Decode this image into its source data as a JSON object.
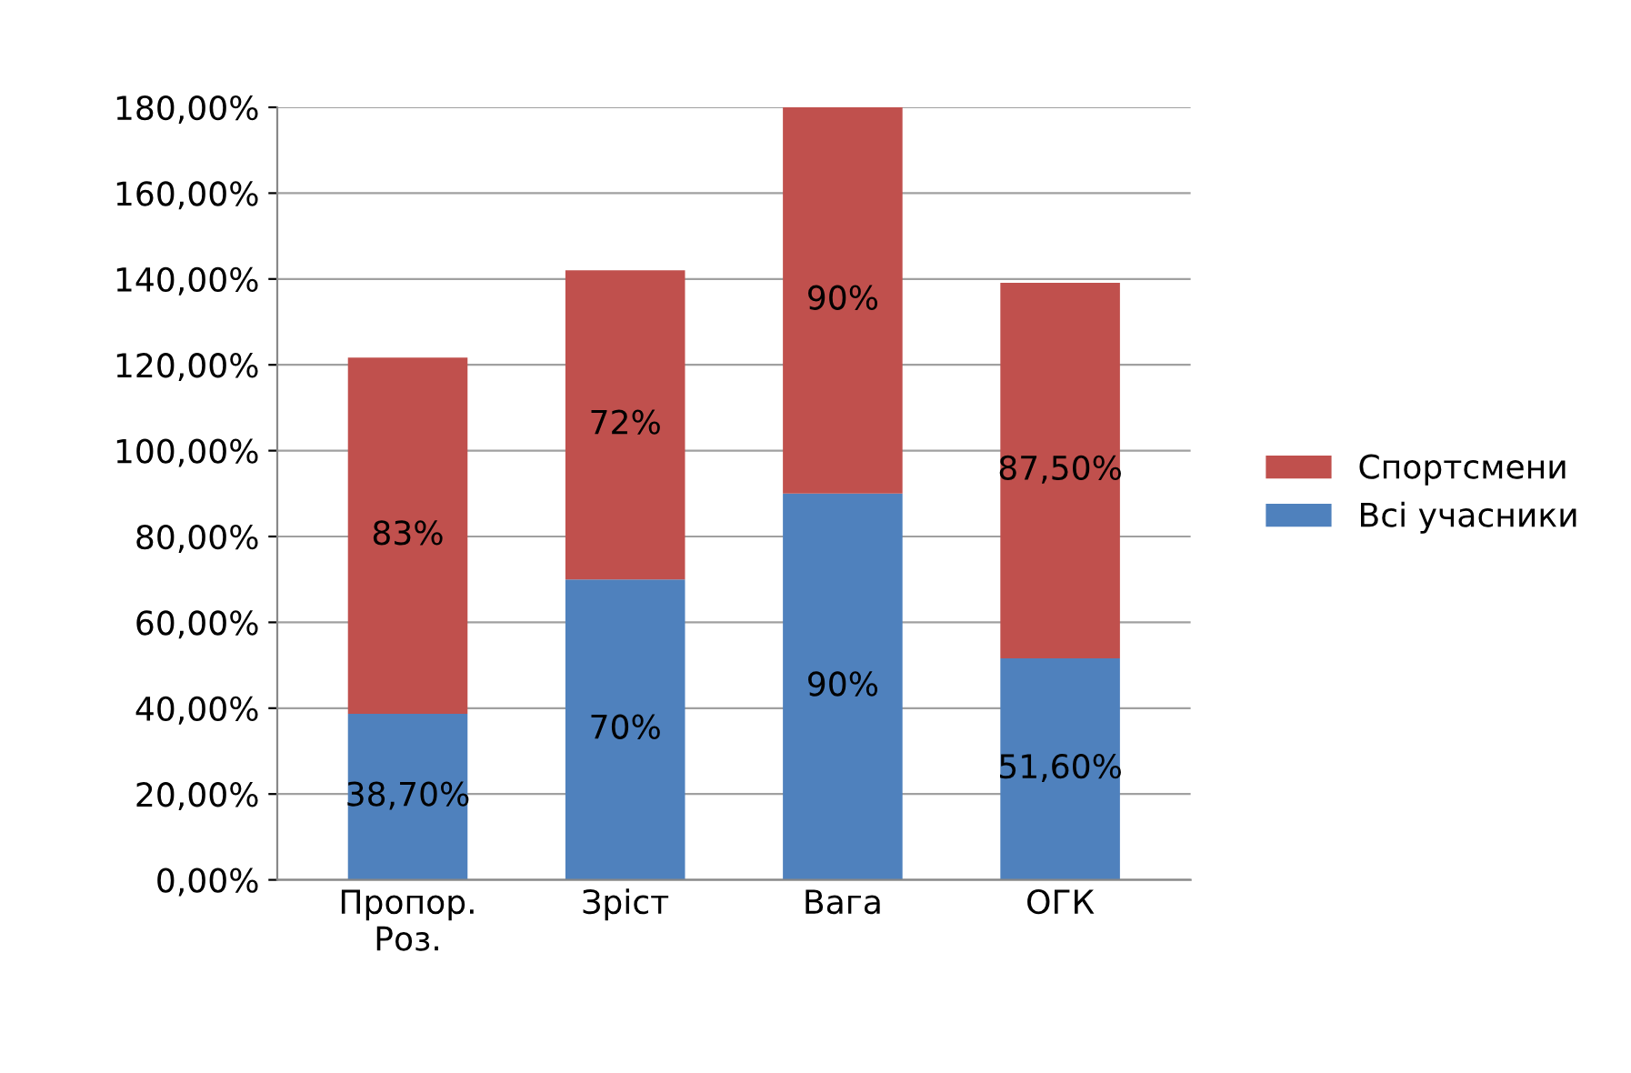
{
  "chart_data": {
    "type": "bar",
    "stacked": true,
    "categories": [
      "Пропор.\nРоз.",
      "Зріст",
      "Вага",
      "ОГК"
    ],
    "series": [
      {
        "name": "Всі учасники",
        "color": "#4f81bd",
        "values": [
          38.7,
          70,
          90,
          51.6
        ],
        "value_labels": [
          "38,70%",
          "70%",
          "90%",
          "51,60%"
        ]
      },
      {
        "name": "Спортсмени",
        "color": "#c0504d",
        "values": [
          83,
          72,
          90,
          87.5
        ],
        "value_labels": [
          "83%",
          "72%",
          "90%",
          "87,50%"
        ]
      }
    ],
    "ylim": [
      0,
      180
    ],
    "yticks": [
      {
        "value": 0,
        "label": "0,00%"
      },
      {
        "value": 20,
        "label": "20,00%"
      },
      {
        "value": 40,
        "label": "40,00%"
      },
      {
        "value": 60,
        "label": "60,00%"
      },
      {
        "value": 80,
        "label": "80,00%"
      },
      {
        "value": 100,
        "label": "100,00%"
      },
      {
        "value": 120,
        "label": "120,00%"
      },
      {
        "value": 140,
        "label": "140,00%"
      },
      {
        "value": 160,
        "label": "160,00%"
      },
      {
        "value": 180,
        "label": "180,00%"
      }
    ],
    "grid": "y",
    "legend": "right"
  }
}
